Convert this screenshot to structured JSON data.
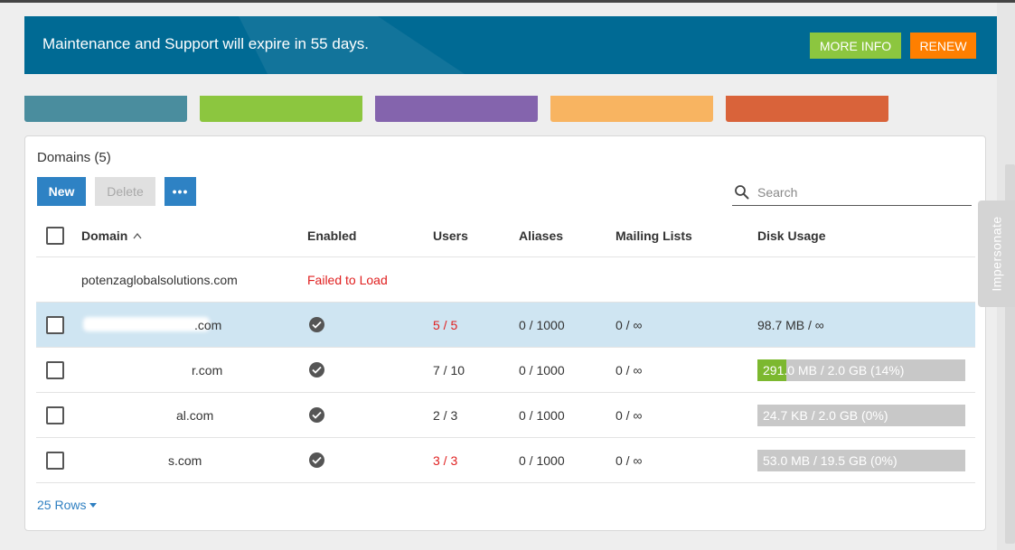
{
  "banner": {
    "message": "Maintenance and Support will expire in 55 days.",
    "more_info_label": "MORE INFO",
    "renew_label": "RENEW"
  },
  "tiles": [
    {
      "color": "#4a8d9e"
    },
    {
      "color": "#8cc63f"
    },
    {
      "color": "#8464ad"
    },
    {
      "color": "#f8b461"
    },
    {
      "color": "#d9633a"
    }
  ],
  "panel": {
    "title": "Domains (5)",
    "new_label": "New",
    "delete_label": "Delete",
    "more_label": "•••",
    "search_placeholder": "Search"
  },
  "table": {
    "columns": [
      "Domain",
      "Enabled",
      "Users",
      "Aliases",
      "Mailing Lists",
      "Disk Usage"
    ],
    "rows": [
      {
        "domain": "potenzaglobalsolutions.com",
        "enabled": "Failed to Load",
        "users": "",
        "aliases": "",
        "mailing_lists": "",
        "disk_usage": ""
      },
      {
        "domain": ".com",
        "enabled": "check",
        "users": "5 / 5",
        "aliases": "0 / 1000",
        "mailing_lists": "0 / ∞",
        "disk_usage": "98.7 MB / ∞"
      },
      {
        "domain": "r.com",
        "enabled": "check",
        "users": "7 / 10",
        "aliases": "0 / 1000",
        "mailing_lists": "0 / ∞",
        "disk_usage": "291.0 MB / 2.0 GB (14%)",
        "disk_fraction": 0.14
      },
      {
        "domain": "al.com",
        "enabled": "check",
        "users": "2 / 3",
        "aliases": "0 / 1000",
        "mailing_lists": "0 / ∞",
        "disk_usage": "24.7 KB / 2.0 GB (0%)",
        "disk_fraction": 0.0
      },
      {
        "domain": "s.com",
        "enabled": "check",
        "users": "3 / 3",
        "aliases": "0 / 1000",
        "mailing_lists": "0 / ∞",
        "disk_usage": "53.0 MB / 19.5 GB (0%)",
        "disk_fraction": 0.0
      }
    ]
  },
  "pagination": {
    "rows_label": "25 Rows"
  },
  "side_tab": {
    "label": "Impersonate"
  },
  "colors": {
    "banner": "#006a94",
    "primary": "#2e82c4",
    "error": "#e02020",
    "usage_fill": "#7cb82f"
  }
}
